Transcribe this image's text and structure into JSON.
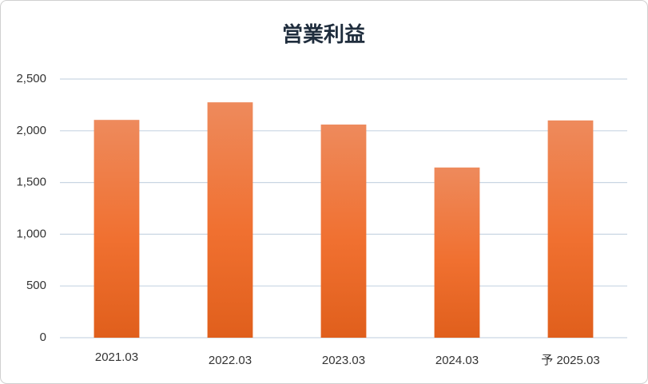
{
  "chart_data": {
    "type": "bar",
    "title": "営業利益",
    "categories": [
      "2021.03",
      "2022.03",
      "2023.03",
      "2024.03",
      "予 2025.03"
    ],
    "values": [
      2105,
      2275,
      2060,
      1645,
      2100
    ],
    "color": "#f07030",
    "ylim": [
      0,
      2500
    ],
    "yticks": [
      0,
      500,
      {
        "value": 1000,
        "label": "1,000"
      },
      {
        "value": 1500,
        "label": "1,500"
      },
      {
        "value": 2000,
        "label": "2,000"
      },
      {
        "value": 2500,
        "label": "2,500"
      }
    ],
    "grid": true
  }
}
